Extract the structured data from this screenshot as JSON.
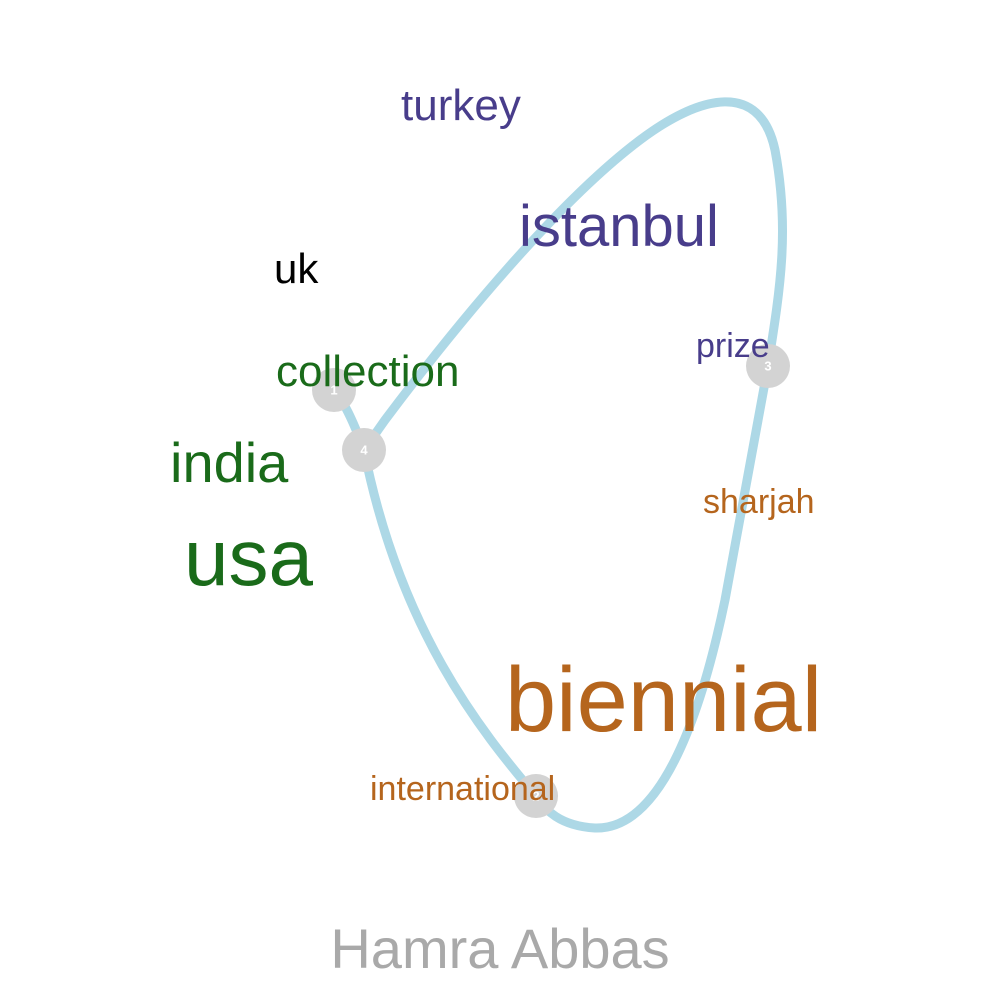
{
  "colors": {
    "loop": "#add8e6",
    "node": "#d3d3d3",
    "node_text": "#ffffff",
    "purple": "#483d8b",
    "green": "#1a6b1a",
    "orange": "#b5651d",
    "black": "#000000",
    "caption": "#a9a9a9"
  },
  "nodes": [
    {
      "id": "1",
      "label": "1"
    },
    {
      "id": "2",
      "label": "2"
    },
    {
      "id": "3",
      "label": "3"
    },
    {
      "id": "4",
      "label": "4"
    }
  ],
  "terms": [
    {
      "key": "turkey",
      "text": "turkey",
      "color_key": "purple"
    },
    {
      "key": "istanbul",
      "text": "istanbul",
      "color_key": "purple"
    },
    {
      "key": "prize",
      "text": "prize",
      "color_key": "purple"
    },
    {
      "key": "uk",
      "text": "uk",
      "color_key": "black"
    },
    {
      "key": "collection",
      "text": "collection",
      "color_key": "green"
    },
    {
      "key": "india",
      "text": "india",
      "color_key": "green"
    },
    {
      "key": "usa",
      "text": "usa",
      "color_key": "green"
    },
    {
      "key": "sharjah",
      "text": "sharjah",
      "color_key": "orange"
    },
    {
      "key": "biennial",
      "text": "biennial",
      "color_key": "orange"
    },
    {
      "key": "international",
      "text": "international",
      "color_key": "orange"
    }
  ],
  "caption": "Hamra Abbas"
}
